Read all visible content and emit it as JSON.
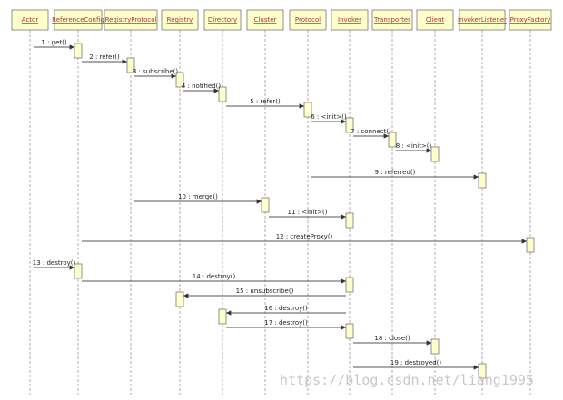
{
  "participants": [
    "Actor",
    "ReferenceConfig",
    "RegistryProtocol",
    "Registry",
    "Directory",
    "Cluster",
    "Protocol",
    "Invoker",
    "Transporter",
    "Client",
    "InvokerListener",
    "ProxyFactory"
  ],
  "messages": [
    "1 : get()",
    "2 : refer()",
    "3 : subscribe()",
    "4 : notified()",
    "5 : refer()",
    "6 : <init>()",
    "7 : connect()",
    "8 : <init>()",
    "9 : referred()",
    "10 : merge()",
    "11 : <init>()",
    "12 : createProxy()",
    "13 : destroy()",
    "14 : destroy()",
    "15 : unsubscribe()",
    "16 : destroy()",
    "17 : destroy()",
    "18 : close()",
    "19 : destroyed()"
  ],
  "watermark": "https://blog.csdn.net/liang1995"
}
